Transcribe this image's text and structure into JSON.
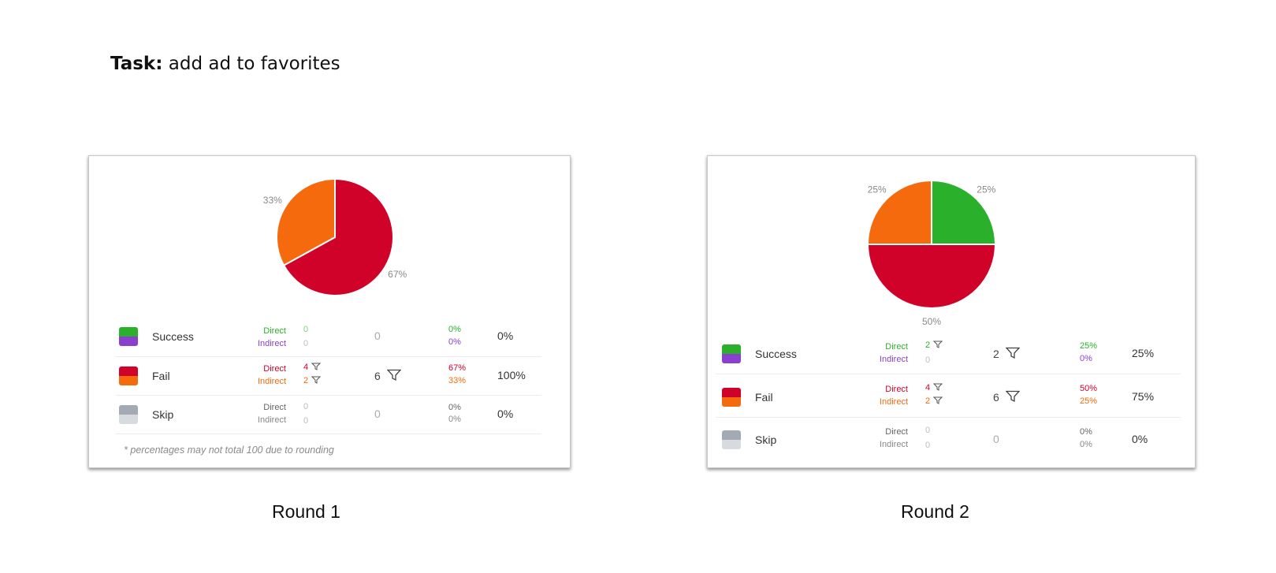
{
  "task": {
    "prefix": "Task:",
    "text": "add ad to favorites"
  },
  "labels": {
    "direct": "Direct",
    "indirect": "Indirect"
  },
  "colors": {
    "success_direct": "#2bb02b",
    "success_indirect": "#8a3fcf",
    "fail_direct": "#d0022a",
    "fail_indirect": "#f46a0c",
    "skip_direct": "#a3aab3",
    "skip_indirect": "#d7dade"
  },
  "rounds": [
    {
      "title": "Round 1",
      "footnote": "* percentages may not total 100 due to rounding",
      "rows": [
        {
          "label": "Success",
          "direct_count": "0",
          "indirect_count": "0",
          "total": "0",
          "direct_pct": "0%",
          "indirect_pct": "0%",
          "overall": "0%"
        },
        {
          "label": "Fail",
          "direct_count": "4",
          "indirect_count": "2",
          "total": "6",
          "direct_pct": "67%",
          "indirect_pct": "33%",
          "overall": "100%"
        },
        {
          "label": "Skip",
          "direct_count": "0",
          "indirect_count": "0",
          "total": "0",
          "direct_pct": "0%",
          "indirect_pct": "0%",
          "overall": "0%"
        }
      ]
    },
    {
      "title": "Round 2",
      "footnote": "",
      "rows": [
        {
          "label": "Success",
          "direct_count": "2",
          "indirect_count": "0",
          "total": "2",
          "direct_pct": "25%",
          "indirect_pct": "0%",
          "overall": "25%"
        },
        {
          "label": "Fail",
          "direct_count": "4",
          "indirect_count": "2",
          "total": "6",
          "direct_pct": "50%",
          "indirect_pct": "25%",
          "overall": "75%"
        },
        {
          "label": "Skip",
          "direct_count": "0",
          "indirect_count": "0",
          "total": "0",
          "direct_pct": "0%",
          "indirect_pct": "0%",
          "overall": "0%"
        }
      ]
    }
  ],
  "chart_data": [
    {
      "type": "pie",
      "title": "",
      "labels": [
        "Success Direct",
        "Success Indirect",
        "Fail Direct",
        "Fail Indirect",
        "Skip Direct",
        "Skip Indirect"
      ],
      "values": [
        0,
        0,
        67,
        33,
        0,
        0
      ],
      "slice_labels": [
        "",
        "",
        "67%",
        "33%",
        "",
        ""
      ],
      "colors": [
        "#2bb02b",
        "#8a3fcf",
        "#d0022a",
        "#f46a0c",
        "#a3aab3",
        "#d7dade"
      ]
    },
    {
      "type": "pie",
      "title": "",
      "labels": [
        "Success Direct",
        "Success Indirect",
        "Fail Direct",
        "Fail Indirect",
        "Skip Direct",
        "Skip Indirect"
      ],
      "values": [
        25,
        0,
        50,
        25,
        0,
        0
      ],
      "slice_labels": [
        "25%",
        "",
        "50%",
        "25%",
        "",
        ""
      ],
      "colors": [
        "#2bb02b",
        "#8a3fcf",
        "#d0022a",
        "#f46a0c",
        "#a3aab3",
        "#d7dade"
      ]
    }
  ]
}
